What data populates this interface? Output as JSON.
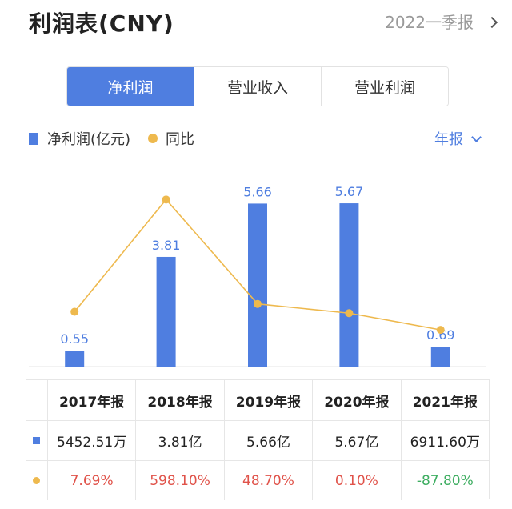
{
  "header": {
    "title": "利润表(CNY)",
    "period": "2022一季报"
  },
  "tabs": [
    {
      "label": "净利润",
      "active": true
    },
    {
      "label": "营业收入",
      "active": false
    },
    {
      "label": "营业利润",
      "active": false
    }
  ],
  "legend": {
    "bar_label": "净利润(亿元)",
    "line_label": "同比"
  },
  "annual_toggle": "年报",
  "colors": {
    "bar": "#4f7ee0",
    "line": "#eeb94e",
    "positive": "#e0534a",
    "negative": "#3fae62"
  },
  "chart_data": {
    "type": "bar",
    "categories": [
      "2017年报",
      "2018年报",
      "2019年报",
      "2020年报",
      "2021年报"
    ],
    "series": [
      {
        "name": "净利润(亿元)",
        "type": "bar",
        "values": [
          0.55,
          3.81,
          5.66,
          5.67,
          0.69
        ],
        "labels": [
          "0.55",
          "3.81",
          "5.66",
          "5.67",
          "0.69"
        ]
      },
      {
        "name": "同比",
        "type": "line",
        "values": [
          7.69,
          598.1,
          48.7,
          0.1,
          -87.8
        ]
      }
    ]
  },
  "table": {
    "headers": [
      "2017年报",
      "2018年报",
      "2019年报",
      "2020年报",
      "2021年报"
    ],
    "net_profit": [
      "5452.51万",
      "3.81亿",
      "5.66亿",
      "5.67亿",
      "6911.60万"
    ],
    "yoy": [
      "7.69%",
      "598.10%",
      "48.70%",
      "0.10%",
      "-87.80%"
    ]
  }
}
